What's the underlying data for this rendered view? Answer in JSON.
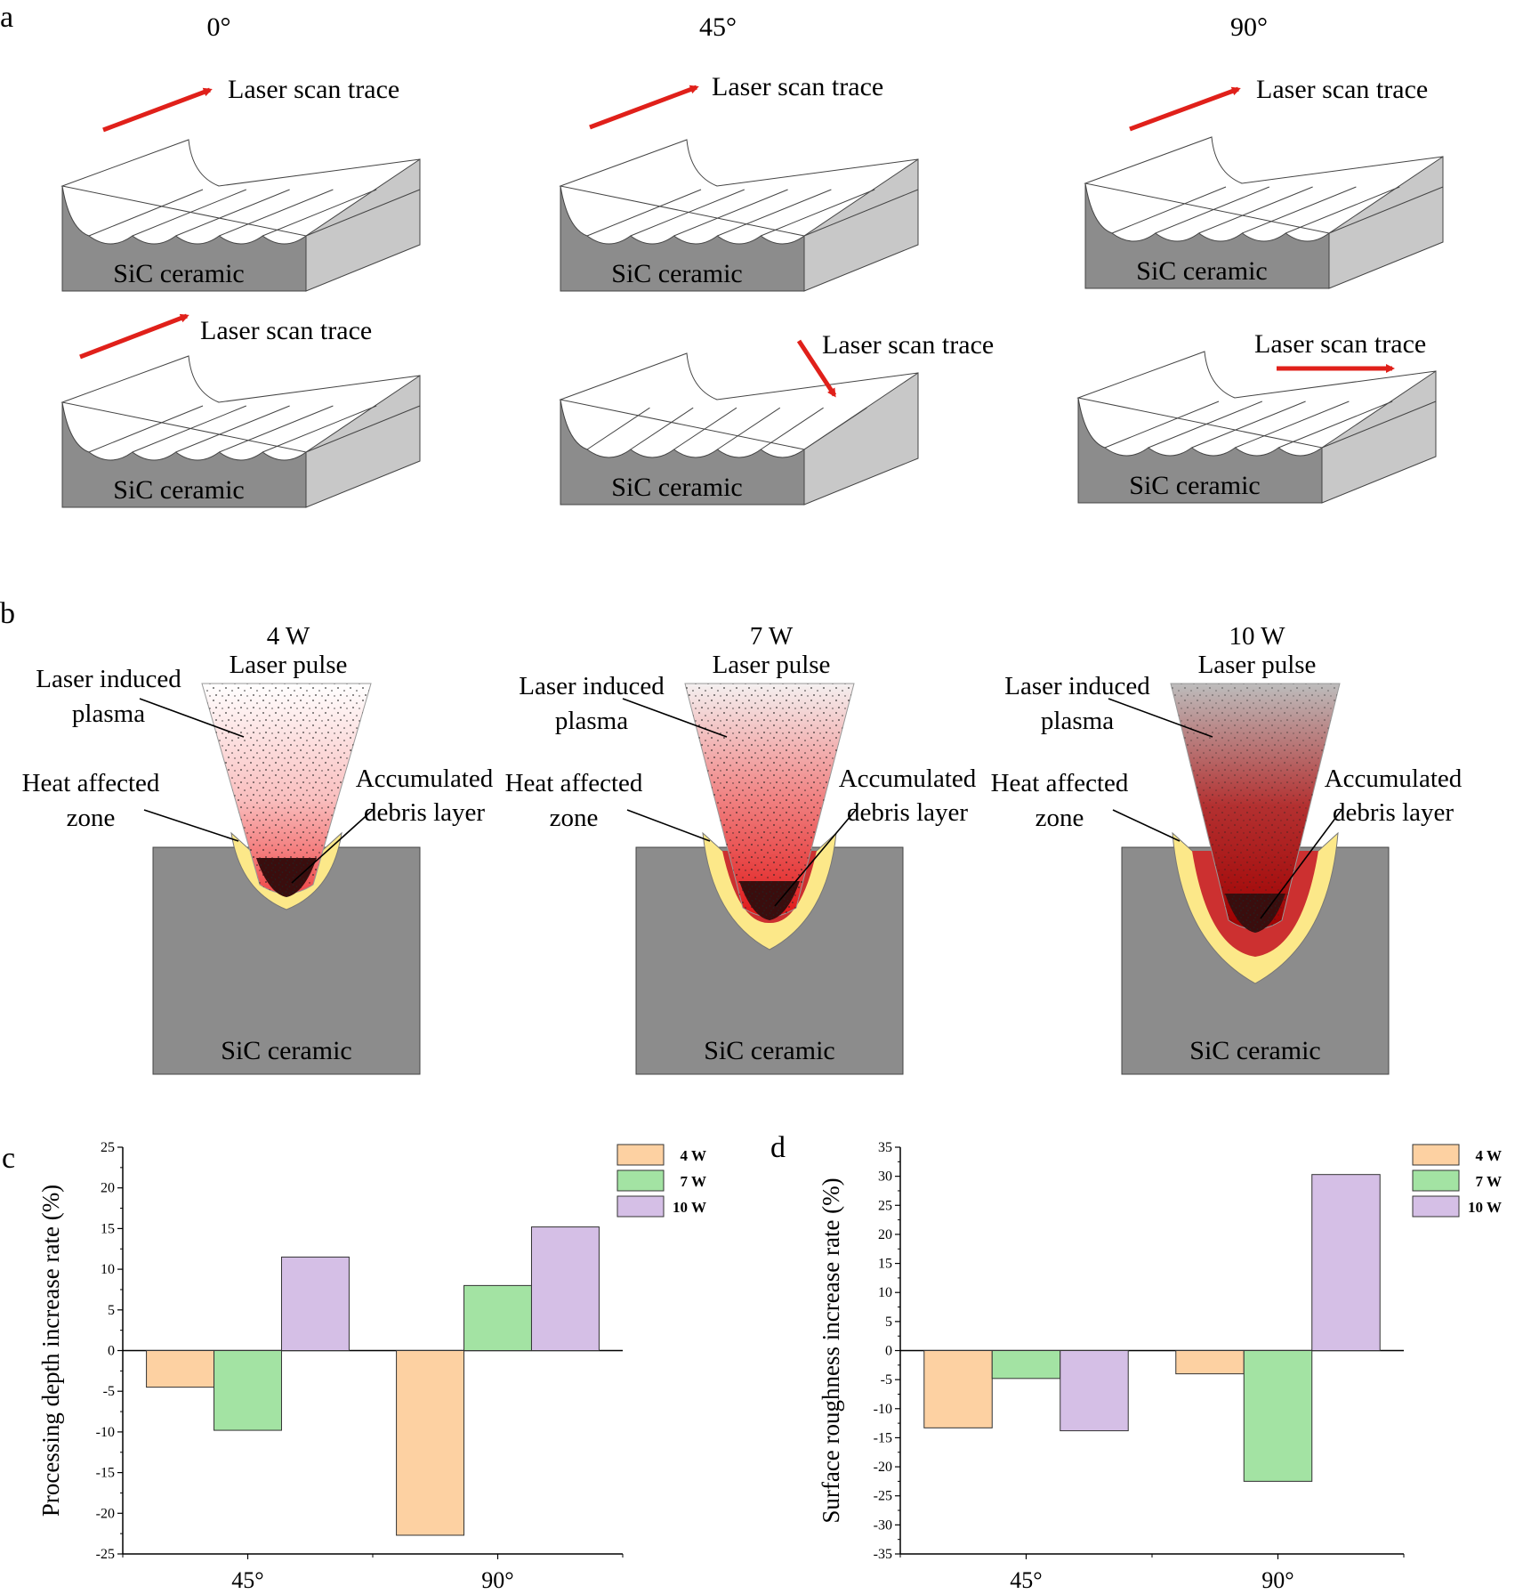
{
  "panel_a": {
    "letter": "a",
    "angles": [
      "0°",
      "45°",
      "90°"
    ],
    "scan_label": "Laser scan trace",
    "material_label": "SiC ceramic"
  },
  "panel_b": {
    "letter": "b",
    "powers": [
      "4 W",
      "7 W",
      "10 W"
    ],
    "pulse_label": "Laser pulse",
    "plasma_label_line1": "Laser induced",
    "plasma_label_line2": "plasma",
    "haz_label_line1": "Heat affected",
    "haz_label_line2": "zone",
    "debris_label_line1": "Accumulated",
    "debris_label_line2": "debris layer",
    "material_label": "SiC ceramic"
  },
  "colors": {
    "ceramic_front": "#8c8c8c",
    "ceramic_side": "#c8c8c8",
    "scan_arrow": "#e0201a",
    "haz": "#fce889",
    "bar_4w": "#fdd1a2",
    "bar_7w": "#a3e3a3",
    "bar_10w": "#d5bfe6"
  },
  "chart_data": [
    {
      "panel": "c",
      "type": "bar",
      "categories": [
        "45°",
        "90°"
      ],
      "ylabel": "Processing depth increase rate  (%)",
      "ylim": [
        -25,
        25
      ],
      "yticks": [
        25,
        20,
        15,
        10,
        5,
        0,
        -5,
        -10,
        -15,
        -20,
        -25
      ],
      "legend_position": "top-right",
      "series": [
        {
          "name": "4 W",
          "values": [
            -4.5,
            -22.7
          ]
        },
        {
          "name": "7 W",
          "values": [
            -9.8,
            8.0
          ]
        },
        {
          "name": "10 W",
          "values": [
            11.5,
            15.2
          ]
        }
      ]
    },
    {
      "panel": "d",
      "type": "bar",
      "categories": [
        "45°",
        "90°"
      ],
      "ylabel": "Surface roughness increase rate  (%)",
      "ylim": [
        -35,
        35
      ],
      "yticks": [
        35,
        30,
        25,
        20,
        15,
        10,
        5,
        0,
        -5,
        -10,
        -15,
        -20,
        -25,
        -30,
        -35
      ],
      "legend_position": "top-right",
      "series": [
        {
          "name": "4 W",
          "values": [
            -13.3,
            -4.0
          ]
        },
        {
          "name": "7 W",
          "values": [
            -4.8,
            -22.5
          ]
        },
        {
          "name": "10 W",
          "values": [
            -13.8,
            30.3
          ]
        }
      ]
    }
  ]
}
